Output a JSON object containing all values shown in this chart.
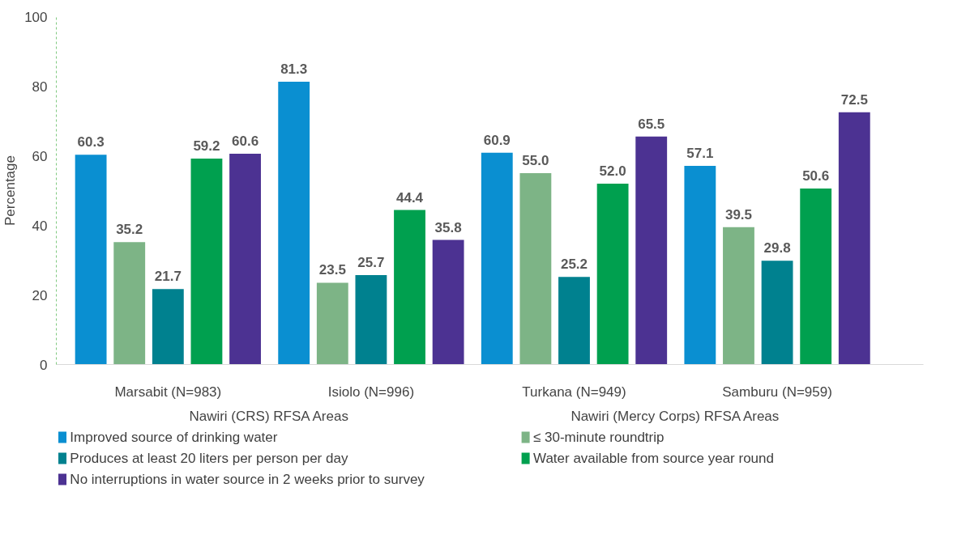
{
  "chart_data": {
    "type": "bar",
    "ylabel": "Percentage",
    "categories": [
      "Marsabit (N=983)",
      "Isiolo (N=996)",
      "Turkana (N=949)",
      "Samburu (N=959)"
    ],
    "series": [
      {
        "name": "Improved source of drinking water",
        "color": "#0a8fd1",
        "values": [
          60.3,
          81.3,
          60.9,
          57.1
        ],
        "value_labels": [
          "60.3",
          "81.3",
          "60.9",
          "57.1"
        ]
      },
      {
        "name": "≤ 30-minute roundtrip",
        "color": "#7db486",
        "values": [
          35.2,
          23.5,
          55.0,
          39.5
        ],
        "value_labels": [
          "35.2",
          "23.5",
          "55.0",
          "39.5"
        ]
      },
      {
        "name": "Produces at least 20 liters per person per day",
        "color": "#00818f",
        "values": [
          21.7,
          25.7,
          25.2,
          29.8
        ],
        "value_labels": [
          "21.7",
          "25.7",
          "25.2",
          "29.8"
        ]
      },
      {
        "name": "Water available from source year round",
        "color": "#00a04f",
        "values": [
          59.2,
          44.4,
          52.0,
          50.6
        ],
        "value_labels": [
          "59.2",
          "44.4",
          "52.0",
          "50.6"
        ]
      },
      {
        "name": "No interruptions in water source in 2 weeks prior to survey",
        "color": "#4c3292",
        "values": [
          60.6,
          35.8,
          65.5,
          72.5
        ],
        "value_labels": [
          "60.6",
          "35.8",
          "65.5",
          "72.5"
        ]
      }
    ],
    "annotations": [
      "Nawiri (CRS) RFSA Areas",
      "Nawiri (Mercy Corps) RFSA Areas"
    ],
    "ylim": [
      0,
      100
    ],
    "yticks": [
      0,
      20,
      40,
      60,
      80,
      100
    ],
    "grid": false,
    "legend": "bottom"
  }
}
